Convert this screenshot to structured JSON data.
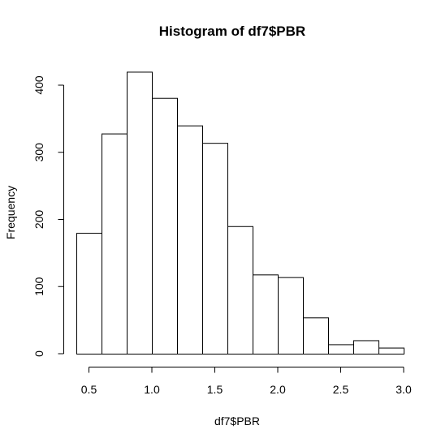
{
  "chart_data": {
    "type": "bar",
    "title": "Histogram of df7$PBR",
    "xlabel": "df7$PBR",
    "ylabel": "Frequency",
    "bin_edges": [
      0.4,
      0.6,
      0.8,
      1.0,
      1.2,
      1.4,
      1.6,
      1.8,
      2.0,
      2.2,
      2.4,
      2.6,
      2.8,
      3.0
    ],
    "values": [
      180,
      328,
      420,
      381,
      340,
      314,
      190,
      118,
      114,
      54,
      14,
      20,
      9
    ],
    "x_ticks": [
      0.5,
      1.0,
      1.5,
      2.0,
      2.5,
      3.0
    ],
    "x_tick_labels": [
      "0.5",
      "1.0",
      "1.5",
      "2.0",
      "2.5",
      "3.0"
    ],
    "y_ticks": [
      0,
      100,
      200,
      300,
      400
    ],
    "y_tick_labels": [
      "0",
      "100",
      "200",
      "300",
      "400"
    ],
    "ylim": [
      0,
      420
    ],
    "xlim": [
      0.4,
      3.0
    ],
    "grid": false,
    "legend": "none"
  }
}
